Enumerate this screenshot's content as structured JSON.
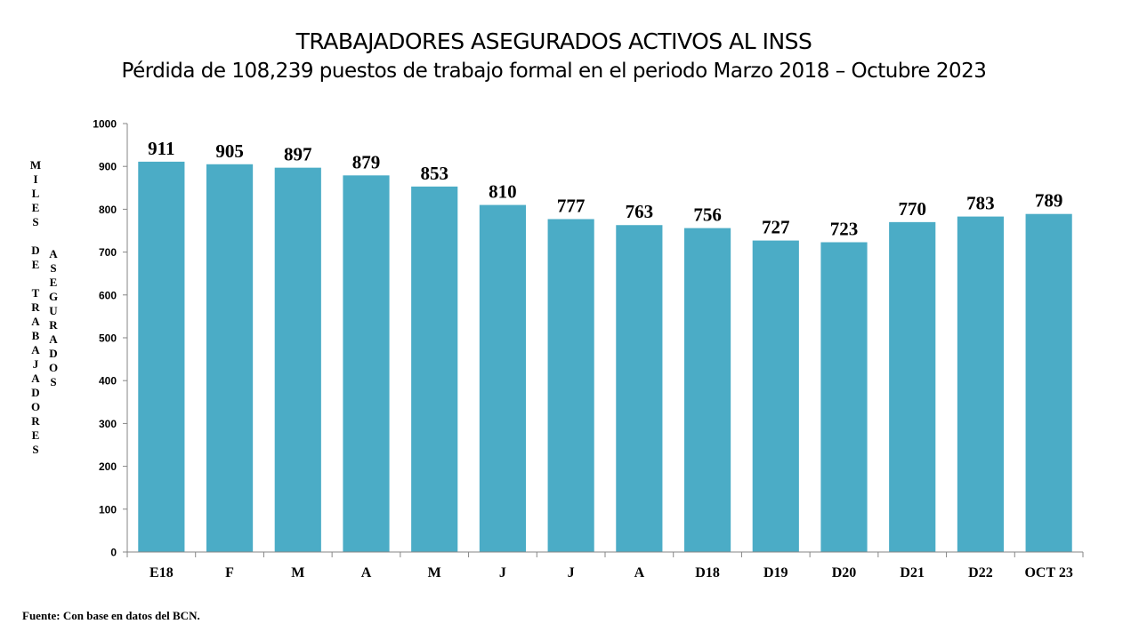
{
  "title": "TRABAJADORES ASEGURADOS ACTIVOS AL INSS",
  "subtitle": "Pérdida de 108,239 puestos de trabajo formal en el periodo Marzo 2018 – Octubre 2023",
  "source": "Fuente: Con base en datos del BCN.",
  "chart_data": {
    "type": "bar",
    "title": "TRABAJADORES ASEGURADOS ACTIVOS AL INSS",
    "subtitle": "Pérdida de 108,239 puestos de trabajo formal en el periodo Marzo 2018 – Octubre 2023",
    "ylabel": "MILES DE TRABAJADORES ASEGURADOS",
    "ylabel_lines": [
      "MILES",
      "DE",
      "TRABAJADORES",
      "ASEGURADOS"
    ],
    "xlabel": "",
    "categories": [
      "E18",
      "F",
      "M",
      "A",
      "M",
      "J",
      "J",
      "A",
      "D18",
      "D19",
      "D20",
      "D21",
      "D22",
      "OCT 23"
    ],
    "values": [
      911,
      905,
      897,
      879,
      853,
      810,
      777,
      763,
      756,
      727,
      723,
      770,
      783,
      789
    ],
    "ylim": [
      0,
      1000
    ],
    "yticks": [
      0,
      100,
      200,
      300,
      400,
      500,
      600,
      700,
      800,
      900,
      1000
    ],
    "bar_color": "#4BACC6",
    "grid": false,
    "legend": "none",
    "data_labels": true
  }
}
